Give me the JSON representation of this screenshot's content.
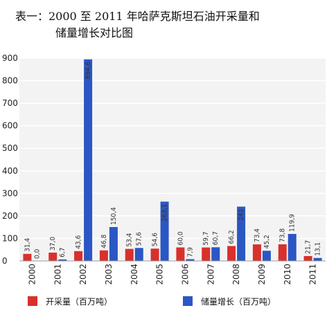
{
  "chart_data": {
    "type": "bar",
    "title_line1": "表一：2000 至 2011 年哈萨克斯坦石油开采量和",
    "title_line2": "储量增长对比图",
    "categories": [
      "2000",
      "2001",
      "2002",
      "2003",
      "2004",
      "2005",
      "2006",
      "2007",
      "2008",
      "2009",
      "2010",
      "2011"
    ],
    "series": [
      {
        "name": "开采量（百万吨）",
        "color": "#d9302c",
        "values": [
          31.4,
          37.0,
          43.6,
          46.8,
          53.4,
          54.6,
          60.0,
          59.7,
          66.2,
          73.4,
          73.8,
          21.7
        ],
        "labels": [
          "31,4",
          "37,0",
          "43,6",
          "46,8",
          "53,4",
          "54,6",
          "60,0",
          "59,7",
          "66,2",
          "73,4",
          "73,8",
          "21,7"
        ]
      },
      {
        "name": "储量增长（百万吨）",
        "color": "#2b57c4",
        "values": [
          0.0,
          6.7,
          894.6,
          150.4,
          57.6,
          263.1,
          7.9,
          60.7,
          241,
          45.2,
          119.9,
          13.1
        ],
        "labels": [
          "0,0",
          "6,7",
          "894,6",
          "150,4",
          "57,6",
          "263,1",
          "7,9",
          "60,7",
          "241",
          "45,2",
          "119,9",
          "13,1"
        ]
      }
    ],
    "yticks": [
      0,
      100,
      200,
      300,
      400,
      500,
      600,
      700,
      800,
      900
    ],
    "ylim": [
      0,
      900
    ],
    "grid": true,
    "legend": "bottom"
  }
}
